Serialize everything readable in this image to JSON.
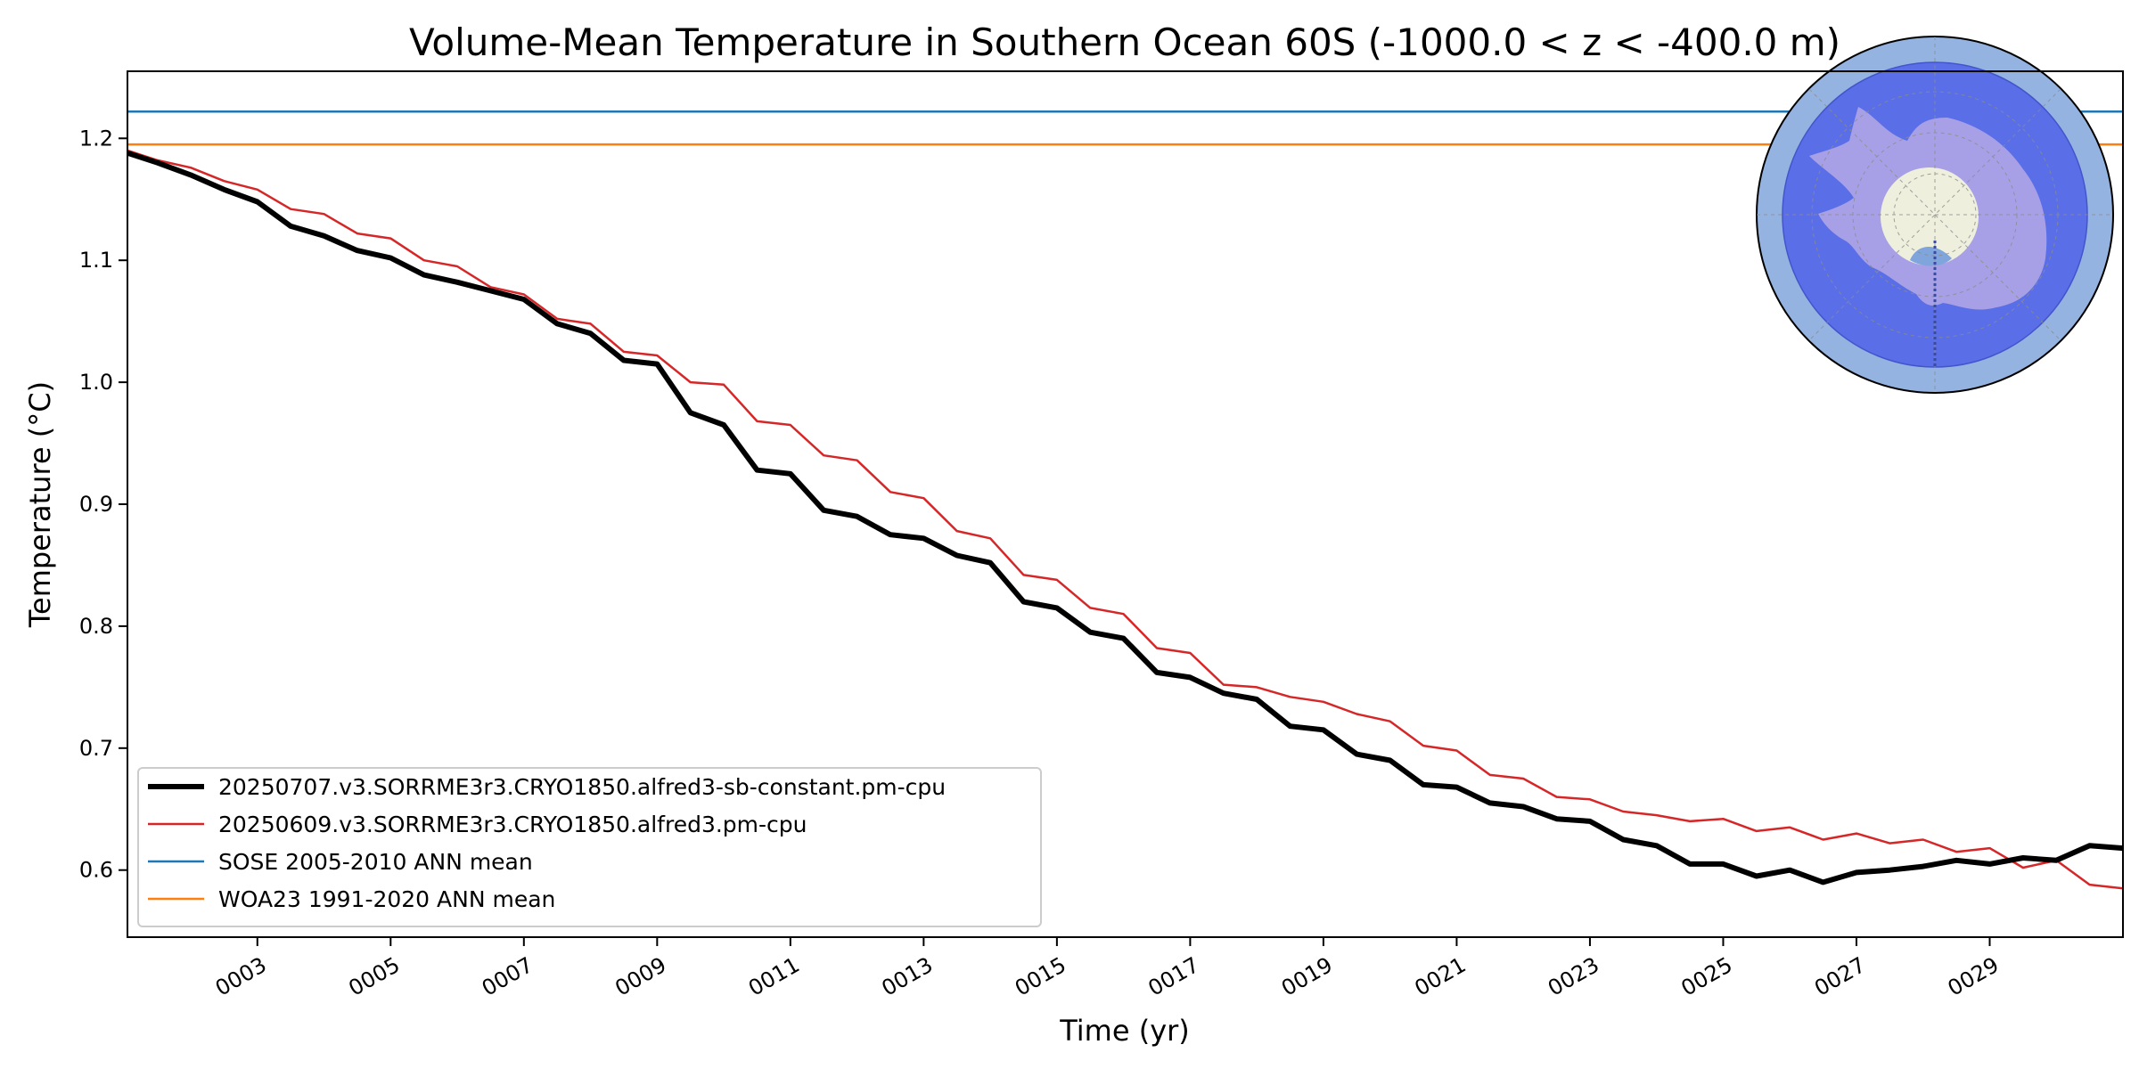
{
  "chart_data": {
    "type": "line",
    "title": "Volume-Mean Temperature in Southern Ocean 60S (-1000.0 < z < -400.0 m)",
    "xlabel": "Time (yr)",
    "ylabel": "Temperature (°C)",
    "xlim": [
      1.05,
      31.0
    ],
    "ylim": [
      0.545,
      1.255
    ],
    "x_ticks": [
      {
        "value": 3,
        "label": "0003"
      },
      {
        "value": 5,
        "label": "0005"
      },
      {
        "value": 7,
        "label": "0007"
      },
      {
        "value": 9,
        "label": "0009"
      },
      {
        "value": 11,
        "label": "0011"
      },
      {
        "value": 13,
        "label": "0013"
      },
      {
        "value": 15,
        "label": "0015"
      },
      {
        "value": 17,
        "label": "0017"
      },
      {
        "value": 19,
        "label": "0019"
      },
      {
        "value": 21,
        "label": "0021"
      },
      {
        "value": 23,
        "label": "0023"
      },
      {
        "value": 25,
        "label": "0025"
      },
      {
        "value": 27,
        "label": "0027"
      },
      {
        "value": 29,
        "label": "0029"
      }
    ],
    "y_ticks": [
      {
        "value": 0.6,
        "label": "0.6"
      },
      {
        "value": 0.7,
        "label": "0.7"
      },
      {
        "value": 0.8,
        "label": "0.8"
      },
      {
        "value": 0.9,
        "label": "0.9"
      },
      {
        "value": 1.0,
        "label": "1.0"
      },
      {
        "value": 1.1,
        "label": "1.1"
      },
      {
        "value": 1.2,
        "label": "1.2"
      }
    ],
    "grid": false,
    "legend_position": "lower-left",
    "series": [
      {
        "name": "20250707.v3.SORRME3r3.CRYO1850.alfred3-sb-constant.pm-cpu",
        "color": "#000000",
        "style": "thick",
        "x": [
          1.05,
          1.5,
          2.0,
          2.5,
          3.0,
          3.5,
          4.0,
          4.5,
          5.0,
          5.5,
          6.0,
          6.5,
          7.0,
          7.5,
          8.0,
          8.5,
          9.0,
          9.5,
          10.0,
          10.5,
          11.0,
          11.5,
          12.0,
          12.5,
          13.0,
          13.5,
          14.0,
          14.5,
          15.0,
          15.5,
          16.0,
          16.5,
          17.0,
          17.5,
          18.0,
          18.5,
          19.0,
          19.5,
          20.0,
          20.5,
          21.0,
          21.5,
          22.0,
          22.5,
          23.0,
          23.5,
          24.0,
          24.5,
          25.0,
          25.5,
          26.0,
          26.5,
          27.0,
          27.5,
          28.0,
          28.5,
          29.0,
          29.5,
          30.0,
          30.5,
          31.0
        ],
        "values": [
          1.188,
          1.18,
          1.17,
          1.158,
          1.148,
          1.128,
          1.12,
          1.108,
          1.102,
          1.088,
          1.082,
          1.075,
          1.068,
          1.048,
          1.04,
          1.018,
          1.015,
          0.975,
          0.965,
          0.928,
          0.925,
          0.895,
          0.89,
          0.875,
          0.872,
          0.858,
          0.852,
          0.82,
          0.815,
          0.795,
          0.79,
          0.762,
          0.758,
          0.745,
          0.74,
          0.718,
          0.715,
          0.695,
          0.69,
          0.67,
          0.668,
          0.655,
          0.652,
          0.642,
          0.64,
          0.625,
          0.62,
          0.605,
          0.605,
          0.595,
          0.6,
          0.59,
          0.598,
          0.6,
          0.603,
          0.608,
          0.605,
          0.61,
          0.608,
          0.62,
          0.618
        ]
      },
      {
        "name": "20250609.v3.SORRME3r3.CRYO1850.alfred3.pm-cpu",
        "color": "#d62728",
        "style": "thin",
        "x": [
          1.05,
          1.5,
          2.0,
          2.5,
          3.0,
          3.5,
          4.0,
          4.5,
          5.0,
          5.5,
          6.0,
          6.5,
          7.0,
          7.5,
          8.0,
          8.5,
          9.0,
          9.5,
          10.0,
          10.5,
          11.0,
          11.5,
          12.0,
          12.5,
          13.0,
          13.5,
          14.0,
          14.5,
          15.0,
          15.5,
          16.0,
          16.5,
          17.0,
          17.5,
          18.0,
          18.5,
          19.0,
          19.5,
          20.0,
          20.5,
          21.0,
          21.5,
          22.0,
          22.5,
          23.0,
          23.5,
          24.0,
          24.5,
          25.0,
          25.5,
          26.0,
          26.5,
          27.0,
          27.5,
          28.0,
          28.5,
          29.0,
          29.5,
          30.0,
          30.5,
          31.0
        ],
        "values": [
          1.19,
          1.182,
          1.176,
          1.165,
          1.158,
          1.142,
          1.138,
          1.122,
          1.118,
          1.1,
          1.095,
          1.078,
          1.072,
          1.052,
          1.048,
          1.025,
          1.022,
          1.0,
          0.998,
          0.968,
          0.965,
          0.94,
          0.936,
          0.91,
          0.905,
          0.878,
          0.872,
          0.842,
          0.838,
          0.815,
          0.81,
          0.782,
          0.778,
          0.752,
          0.75,
          0.742,
          0.738,
          0.728,
          0.722,
          0.702,
          0.698,
          0.678,
          0.675,
          0.66,
          0.658,
          0.648,
          0.645,
          0.64,
          0.642,
          0.632,
          0.635,
          0.625,
          0.63,
          0.622,
          0.625,
          0.615,
          0.618,
          0.602,
          0.608,
          0.588,
          0.585
        ]
      },
      {
        "name": "SOSE 2005-2010 ANN mean",
        "color": "#1f77b4",
        "style": "hline",
        "x": [
          1.05,
          31.0
        ],
        "values": [
          1.222,
          1.222
        ]
      },
      {
        "name": "WOA23 1991-2020 ANN mean",
        "color": "#ff7f0e",
        "style": "hline",
        "x": [
          1.05,
          31.0
        ],
        "values": [
          1.195,
          1.195
        ]
      }
    ]
  },
  "inset_map": {
    "icon": "antarctica-polar-map-icon",
    "colors": {
      "outer_ring": "#95b3e0",
      "ocean": "#5a6ee8",
      "land": "#a7a0e6",
      "pole_hole": "#efefdd"
    }
  }
}
